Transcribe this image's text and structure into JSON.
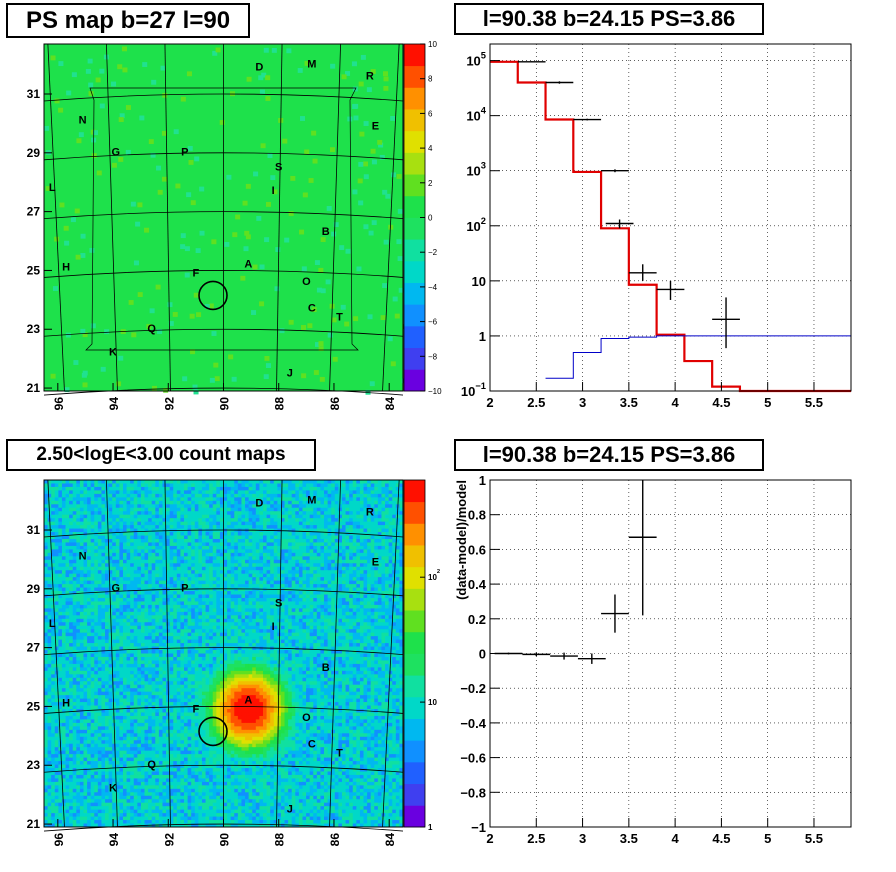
{
  "colors": {
    "frame": "#000000",
    "model_line": "#e00000",
    "background_line": "#0000c8",
    "map_green": "#1ee14b",
    "grid": "#000000"
  },
  "palette": [
    "#6a00e0",
    "#3f3ff0",
    "#2060ff",
    "#1090ff",
    "#00b8f0",
    "#00d8c8",
    "#10e0a0",
    "#1ee160",
    "#1ee14b",
    "#60e020",
    "#a8e010",
    "#e0e000",
    "#f0c000",
    "#ff9000",
    "#ff5000",
    "#ff1000"
  ],
  "chart_data": [
    {
      "type": "heatmap",
      "title": "PS map b=27 l=90",
      "x_ticks": [
        "96",
        "94",
        "92",
        "90",
        "88",
        "86",
        "84"
      ],
      "y_ticks": [
        "31",
        "29",
        "27",
        "25",
        "23",
        "21"
      ],
      "xlim": [
        96.5,
        83.5
      ],
      "ylim": [
        20.9,
        32.7
      ],
      "colorbar": {
        "scale": "linear",
        "range": [
          -10,
          10
        ],
        "ticks": [
          "10",
          "8",
          "6",
          "4",
          "2",
          "0",
          "−2",
          "−4",
          "−6",
          "−8",
          "−10"
        ]
      },
      "map_value": 0,
      "source_labels": [
        {
          "t": "D",
          "l": 88.7,
          "b": 31.8
        },
        {
          "t": "M",
          "l": 86.8,
          "b": 31.9
        },
        {
          "t": "R",
          "l": 84.7,
          "b": 31.5
        },
        {
          "t": "N",
          "l": 95.1,
          "b": 30.0
        },
        {
          "t": "E",
          "l": 84.5,
          "b": 29.8
        },
        {
          "t": "G",
          "l": 93.9,
          "b": 28.9
        },
        {
          "t": "P",
          "l": 91.4,
          "b": 28.9
        },
        {
          "t": "S",
          "l": 88.0,
          "b": 28.4
        },
        {
          "t": "L",
          "l": 96.2,
          "b": 27.7
        },
        {
          "t": "I",
          "l": 88.2,
          "b": 27.6
        },
        {
          "t": "B",
          "l": 86.3,
          "b": 26.2
        },
        {
          "t": "H",
          "l": 95.7,
          "b": 25.0
        },
        {
          "t": "A",
          "l": 89.1,
          "b": 25.1
        },
        {
          "t": "F",
          "l": 91.0,
          "b": 24.8
        },
        {
          "t": "O",
          "l": 87.0,
          "b": 24.5
        },
        {
          "t": "C",
          "l": 86.8,
          "b": 23.6
        },
        {
          "t": "T",
          "l": 85.8,
          "b": 23.3
        },
        {
          "t": "Q",
          "l": 92.6,
          "b": 22.9
        },
        {
          "t": "K",
          "l": 94.0,
          "b": 22.1
        },
        {
          "t": "J",
          "l": 87.6,
          "b": 21.4
        }
      ],
      "circle": {
        "l": 90.38,
        "b": 24.15
      }
    },
    {
      "type": "line",
      "title": "l=90.38 b=24.15 PS=3.86",
      "x_ticks": [
        "2",
        "2.5",
        "3",
        "3.5",
        "4",
        "4.5",
        "5",
        "5.5"
      ],
      "xlim": [
        2.0,
        5.9
      ],
      "y_scale": "log",
      "ylim": [
        0.1,
        200000
      ],
      "y_tick_labels": [
        {
          "v": 100000,
          "base": "10",
          "exp": "5"
        },
        {
          "v": 10000,
          "base": "10",
          "exp": "4"
        },
        {
          "v": 1000,
          "base": "10",
          "exp": "3"
        },
        {
          "v": 100,
          "base": "10",
          "exp": "2"
        },
        {
          "v": 10,
          "base": "10",
          "exp": ""
        },
        {
          "v": 1,
          "base": "1",
          "exp": ""
        },
        {
          "v": 0.1,
          "base": "10",
          "exp": "−1"
        }
      ],
      "series": [
        {
          "color": "#e00000",
          "steps": [
            [
              2.0,
              2.3,
              95000
            ],
            [
              2.3,
              2.6,
              40000
            ],
            [
              2.6,
              2.9,
              8500
            ],
            [
              2.9,
              3.2,
              950
            ],
            [
              3.2,
              3.5,
              90
            ],
            [
              3.5,
              3.8,
              8.5
            ],
            [
              3.8,
              4.1,
              1.05
            ],
            [
              4.1,
              4.4,
              0.35
            ],
            [
              4.4,
              4.7,
              0.12
            ],
            [
              4.7,
              5.9,
              0.1
            ]
          ]
        },
        {
          "color": "#0000c8",
          "steps": [
            [
              2.6,
              2.9,
              0.17
            ],
            [
              2.9,
              3.2,
              0.5
            ],
            [
              3.2,
              3.5,
              0.9
            ],
            [
              3.5,
              3.8,
              0.95
            ],
            [
              3.8,
              5.9,
              1.0
            ]
          ]
        }
      ],
      "points": [
        {
          "x": 2.45,
          "y": 95000,
          "xerr": 0.15,
          "ylo": 93000,
          "yhi": 97000
        },
        {
          "x": 2.75,
          "y": 40000,
          "xerr": 0.15,
          "ylo": 38000,
          "yhi": 42000
        },
        {
          "x": 3.05,
          "y": 8500,
          "xerr": 0.15,
          "ylo": 8200,
          "yhi": 8800
        },
        {
          "x": 3.35,
          "y": 1000,
          "xerr": 0.15,
          "ylo": 940,
          "yhi": 1060
        },
        {
          "x": 3.4,
          "y": 110,
          "xerr": 0.15,
          "ylo": 90,
          "yhi": 130
        },
        {
          "x": 3.65,
          "y": 14,
          "xerr": 0.15,
          "ylo": 10,
          "yhi": 20
        },
        {
          "x": 3.95,
          "y": 7,
          "xerr": 0.15,
          "ylo": 4.5,
          "yhi": 10
        },
        {
          "x": 4.55,
          "y": 2,
          "xerr": 0.15,
          "ylo": 0.6,
          "yhi": 5
        }
      ]
    },
    {
      "type": "heatmap",
      "title": "2.50<logE<3.00 count maps",
      "x_ticks": [
        "96",
        "94",
        "92",
        "90",
        "88",
        "86",
        "84"
      ],
      "y_ticks": [
        "31",
        "29",
        "27",
        "25",
        "23",
        "21"
      ],
      "xlim": [
        96.5,
        83.5
      ],
      "ylim": [
        20.9,
        32.7
      ],
      "colorbar": {
        "scale": "log",
        "ticks": [
          {
            "v": 100,
            "base": "10",
            "exp": "2"
          },
          {
            "v": 10,
            "base": "10",
            "exp": ""
          },
          {
            "v": 1,
            "base": "1",
            "exp": ""
          }
        ],
        "range": [
          1,
          600
        ]
      },
      "background_level": 8,
      "hotspot": {
        "l": 89.1,
        "b": 24.9,
        "peak": 600,
        "sigma": 0.55
      },
      "source_labels": [
        {
          "t": "D",
          "l": 88.7,
          "b": 31.8
        },
        {
          "t": "M",
          "l": 86.8,
          "b": 31.9
        },
        {
          "t": "R",
          "l": 84.7,
          "b": 31.5
        },
        {
          "t": "N",
          "l": 95.1,
          "b": 30.0
        },
        {
          "t": "E",
          "l": 84.5,
          "b": 29.8
        },
        {
          "t": "G",
          "l": 93.9,
          "b": 28.9
        },
        {
          "t": "P",
          "l": 91.4,
          "b": 28.9
        },
        {
          "t": "S",
          "l": 88.0,
          "b": 28.4
        },
        {
          "t": "L",
          "l": 96.2,
          "b": 27.7
        },
        {
          "t": "I",
          "l": 88.2,
          "b": 27.6
        },
        {
          "t": "B",
          "l": 86.3,
          "b": 26.2
        },
        {
          "t": "H",
          "l": 95.7,
          "b": 25.0
        },
        {
          "t": "A",
          "l": 89.1,
          "b": 25.1
        },
        {
          "t": "F",
          "l": 91.0,
          "b": 24.8
        },
        {
          "t": "O",
          "l": 87.0,
          "b": 24.5
        },
        {
          "t": "C",
          "l": 86.8,
          "b": 23.6
        },
        {
          "t": "T",
          "l": 85.8,
          "b": 23.3
        },
        {
          "t": "Q",
          "l": 92.6,
          "b": 22.9
        },
        {
          "t": "K",
          "l": 94.0,
          "b": 22.1
        },
        {
          "t": "J",
          "l": 87.6,
          "b": 21.4
        }
      ],
      "circle": {
        "l": 90.38,
        "b": 24.15
      }
    },
    {
      "type": "scatter",
      "title": "l=90.38 b=24.15 PS=3.86",
      "ylabel": "(data-model)/model",
      "x_ticks": [
        "2",
        "2.5",
        "3",
        "3.5",
        "4",
        "4.5",
        "5",
        "5.5"
      ],
      "xlim": [
        2.0,
        5.9
      ],
      "ylim": [
        -1,
        1
      ],
      "y_ticks": [
        "1",
        "0.8",
        "0.6",
        "0.4",
        "0.2",
        "0",
        "−0.2",
        "−0.4",
        "−0.6",
        "−0.8",
        "−1"
      ],
      "points": [
        {
          "x": 2.2,
          "y": 0.0,
          "xerr": 0.15,
          "yerr": 0.005
        },
        {
          "x": 2.5,
          "y": -0.005,
          "xerr": 0.15,
          "yerr": 0.01
        },
        {
          "x": 2.8,
          "y": -0.015,
          "xerr": 0.15,
          "yerr": 0.02
        },
        {
          "x": 3.1,
          "y": -0.03,
          "xerr": 0.15,
          "yerr": 0.03
        },
        {
          "x": 3.35,
          "y": 0.23,
          "xerr": 0.15,
          "yerr": 0.11
        },
        {
          "x": 3.65,
          "y": 0.67,
          "xerr": 0.15,
          "yerr": 0.45
        }
      ]
    }
  ]
}
